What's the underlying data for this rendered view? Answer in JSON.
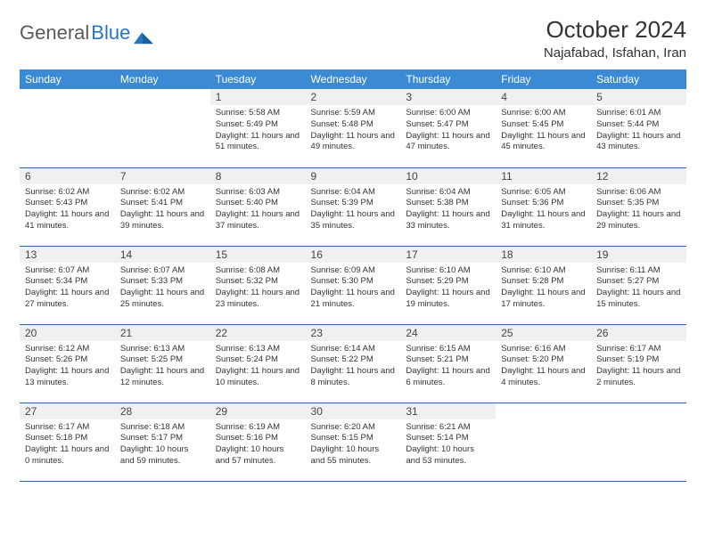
{
  "brand": {
    "part1": "General",
    "part2": "Blue"
  },
  "title": "October 2024",
  "location": "Najafabad, Isfahan, Iran",
  "colors": {
    "header_bg": "#3b8bd4",
    "header_text": "#ffffff",
    "daynum_bg": "#eef0f2",
    "border": "#2d6aa8",
    "logo_gray": "#5a5a5a",
    "logo_blue": "#2876c0"
  },
  "day_names": [
    "Sunday",
    "Monday",
    "Tuesday",
    "Wednesday",
    "Thursday",
    "Friday",
    "Saturday"
  ],
  "weeks": [
    [
      null,
      null,
      {
        "n": "1",
        "sr": "5:58 AM",
        "ss": "5:49 PM",
        "dl": "11 hours and 51 minutes."
      },
      {
        "n": "2",
        "sr": "5:59 AM",
        "ss": "5:48 PM",
        "dl": "11 hours and 49 minutes."
      },
      {
        "n": "3",
        "sr": "6:00 AM",
        "ss": "5:47 PM",
        "dl": "11 hours and 47 minutes."
      },
      {
        "n": "4",
        "sr": "6:00 AM",
        "ss": "5:45 PM",
        "dl": "11 hours and 45 minutes."
      },
      {
        "n": "5",
        "sr": "6:01 AM",
        "ss": "5:44 PM",
        "dl": "11 hours and 43 minutes."
      }
    ],
    [
      {
        "n": "6",
        "sr": "6:02 AM",
        "ss": "5:43 PM",
        "dl": "11 hours and 41 minutes."
      },
      {
        "n": "7",
        "sr": "6:02 AM",
        "ss": "5:41 PM",
        "dl": "11 hours and 39 minutes."
      },
      {
        "n": "8",
        "sr": "6:03 AM",
        "ss": "5:40 PM",
        "dl": "11 hours and 37 minutes."
      },
      {
        "n": "9",
        "sr": "6:04 AM",
        "ss": "5:39 PM",
        "dl": "11 hours and 35 minutes."
      },
      {
        "n": "10",
        "sr": "6:04 AM",
        "ss": "5:38 PM",
        "dl": "11 hours and 33 minutes."
      },
      {
        "n": "11",
        "sr": "6:05 AM",
        "ss": "5:36 PM",
        "dl": "11 hours and 31 minutes."
      },
      {
        "n": "12",
        "sr": "6:06 AM",
        "ss": "5:35 PM",
        "dl": "11 hours and 29 minutes."
      }
    ],
    [
      {
        "n": "13",
        "sr": "6:07 AM",
        "ss": "5:34 PM",
        "dl": "11 hours and 27 minutes."
      },
      {
        "n": "14",
        "sr": "6:07 AM",
        "ss": "5:33 PM",
        "dl": "11 hours and 25 minutes."
      },
      {
        "n": "15",
        "sr": "6:08 AM",
        "ss": "5:32 PM",
        "dl": "11 hours and 23 minutes."
      },
      {
        "n": "16",
        "sr": "6:09 AM",
        "ss": "5:30 PM",
        "dl": "11 hours and 21 minutes."
      },
      {
        "n": "17",
        "sr": "6:10 AM",
        "ss": "5:29 PM",
        "dl": "11 hours and 19 minutes."
      },
      {
        "n": "18",
        "sr": "6:10 AM",
        "ss": "5:28 PM",
        "dl": "11 hours and 17 minutes."
      },
      {
        "n": "19",
        "sr": "6:11 AM",
        "ss": "5:27 PM",
        "dl": "11 hours and 15 minutes."
      }
    ],
    [
      {
        "n": "20",
        "sr": "6:12 AM",
        "ss": "5:26 PM",
        "dl": "11 hours and 13 minutes."
      },
      {
        "n": "21",
        "sr": "6:13 AM",
        "ss": "5:25 PM",
        "dl": "11 hours and 12 minutes."
      },
      {
        "n": "22",
        "sr": "6:13 AM",
        "ss": "5:24 PM",
        "dl": "11 hours and 10 minutes."
      },
      {
        "n": "23",
        "sr": "6:14 AM",
        "ss": "5:22 PM",
        "dl": "11 hours and 8 minutes."
      },
      {
        "n": "24",
        "sr": "6:15 AM",
        "ss": "5:21 PM",
        "dl": "11 hours and 6 minutes."
      },
      {
        "n": "25",
        "sr": "6:16 AM",
        "ss": "5:20 PM",
        "dl": "11 hours and 4 minutes."
      },
      {
        "n": "26",
        "sr": "6:17 AM",
        "ss": "5:19 PM",
        "dl": "11 hours and 2 minutes."
      }
    ],
    [
      {
        "n": "27",
        "sr": "6:17 AM",
        "ss": "5:18 PM",
        "dl": "11 hours and 0 minutes."
      },
      {
        "n": "28",
        "sr": "6:18 AM",
        "ss": "5:17 PM",
        "dl": "10 hours and 59 minutes."
      },
      {
        "n": "29",
        "sr": "6:19 AM",
        "ss": "5:16 PM",
        "dl": "10 hours and 57 minutes."
      },
      {
        "n": "30",
        "sr": "6:20 AM",
        "ss": "5:15 PM",
        "dl": "10 hours and 55 minutes."
      },
      {
        "n": "31",
        "sr": "6:21 AM",
        "ss": "5:14 PM",
        "dl": "10 hours and 53 minutes."
      },
      null,
      null
    ]
  ],
  "labels": {
    "sunrise": "Sunrise:",
    "sunset": "Sunset:",
    "daylight": "Daylight:"
  }
}
